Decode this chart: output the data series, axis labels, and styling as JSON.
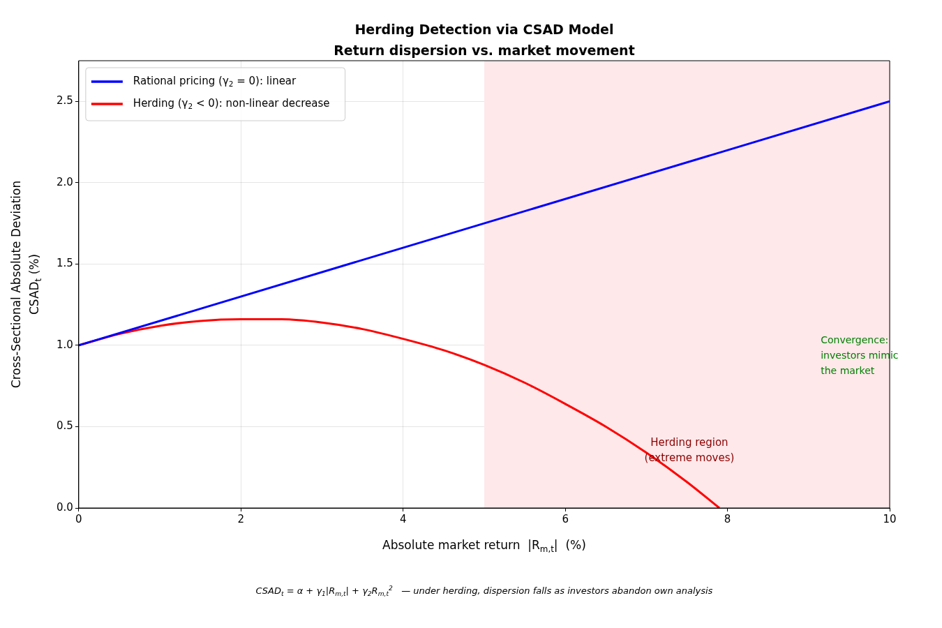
{
  "chart_data": {
    "type": "line",
    "title": "Herding Detection via CSAD Model",
    "subtitle": "Return dispersion vs. market movement",
    "xlabel": "Absolute market return  |R$_{m,t}$|  (%)",
    "ylabel": "Cross-Sectional Absolute Deviation\nCSAD$_{t}$ (%)",
    "series": [
      {
        "name": "Rational pricing (γ$_{2}$ = 0): linear",
        "color": "#0000ff",
        "x": [
          0,
          10
        ],
        "values": [
          1.0,
          2.5
        ]
      },
      {
        "name": "Herding (γ$_{2}$ < 0): non-linear decrease",
        "color": "#ff0000",
        "x": [
          0,
          0.5,
          1,
          1.5,
          2,
          2.5,
          3,
          3.5,
          4,
          4.5,
          5,
          5.5,
          6,
          6.5,
          7,
          7.5,
          7.9
        ],
        "values": [
          1.0,
          1.07,
          1.12,
          1.15,
          1.16,
          1.16,
          1.14,
          1.1,
          1.04,
          0.97,
          0.88,
          0.77,
          0.64,
          0.5,
          0.34,
          0.16,
          0.0
        ]
      }
    ],
    "xlim": [
      0,
      10
    ],
    "xticks": [
      0,
      2,
      4,
      6,
      8,
      10
    ],
    "ylim": [
      0,
      2.75
    ],
    "yticks": [
      {
        "value": 0,
        "label": "0.0"
      },
      0.5,
      {
        "value": 1,
        "label": "1.0"
      },
      1.5,
      {
        "value": 2,
        "label": "2.0"
      },
      2.5
    ],
    "bands": [
      {
        "axis": "x",
        "from": 5,
        "to": 10,
        "color": "#ffe8ea"
      }
    ],
    "annotations": [
      "Herding region\n(extreme moves)",
      "Convergence:\ninvestors mimic\nthe market",
      "CSAD$_{t}$ = α + γ$_{1}$|R$_{m,t}$| + γ$_{2}$R$_{m,t}$$^{2}$   — under herding, dispersion falls as investors abandon own analysis"
    ],
    "grid": true,
    "legend": "top left",
    "line_style": "solid",
    "marker": "none"
  }
}
